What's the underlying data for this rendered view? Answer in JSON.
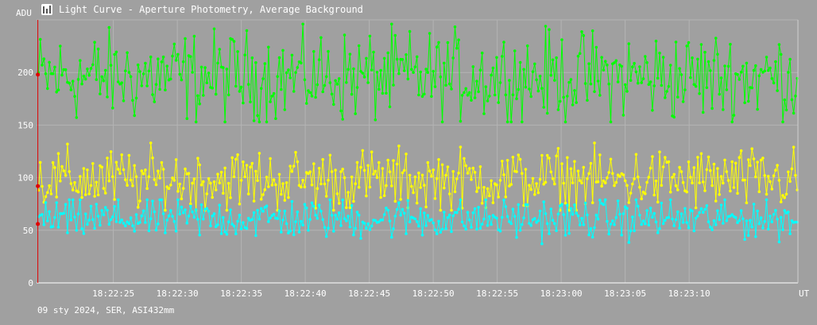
{
  "window": {
    "title": "Light Curve - Aperture Photometry, Average Background",
    "icon": "light-curve-icon"
  },
  "footer": {
    "text": "09 sty 2024, SER, ASI432mm"
  },
  "colors": {
    "background": "#a0a0a0",
    "grid": "#b4b4b4",
    "axis": "#ffffff",
    "cursor": "#e00000",
    "series": [
      "#00ff00",
      "#ffff00",
      "#00ffff"
    ]
  },
  "chart_data": {
    "type": "line",
    "title": "Light Curve - Aperture Photometry, Average Background",
    "ylabel": "ADU",
    "xlabel": "UT",
    "ylim": [
      0,
      250
    ],
    "yticks": [
      0,
      50,
      100,
      150,
      200
    ],
    "xlim": [
      "18:22:19.0",
      "18:23:18.5"
    ],
    "xticks": [
      "18:22:25",
      "18:22:30",
      "18:22:35",
      "18:22:40",
      "18:22:45",
      "18:22:50",
      "18:22:55",
      "18:23:00",
      "18:23:05",
      "18:23:10"
    ],
    "grid": true,
    "legend": "none",
    "points_per_series": 420,
    "series": [
      {
        "mean": 196,
        "min": 153,
        "max": 246,
        "color": "#00ff00"
      },
      {
        "mean": 98,
        "min": 69,
        "max": 133,
        "color": "#ffff00"
      },
      {
        "mean": 61,
        "min": 37,
        "max": 79,
        "color": "#00ffff"
      }
    ],
    "cursor": {
      "x": "18:22:19.1",
      "values": [
        198,
        92,
        56
      ]
    }
  }
}
